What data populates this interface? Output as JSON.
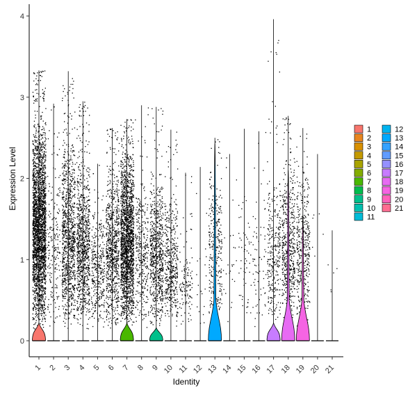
{
  "chart_data": {
    "type": "violin",
    "xlabel": "Identity",
    "ylabel": "Expression Level",
    "ylim": [
      -0.2,
      4.05
    ],
    "yticks": [
      0,
      1,
      2,
      3,
      4
    ],
    "grid": false,
    "legend_position": "right",
    "legend_title": "",
    "categories": [
      "1",
      "2",
      "3",
      "4",
      "5",
      "6",
      "7",
      "8",
      "9",
      "10",
      "11",
      "12",
      "13",
      "14",
      "15",
      "16",
      "17",
      "18",
      "19",
      "20",
      "21"
    ],
    "colors": [
      "#F8766D",
      "#E8851E",
      "#D89000",
      "#C49A00",
      "#A9A400",
      "#84AD00",
      "#4AB800",
      "#00BC4D",
      "#00C08B",
      "#00C0AF",
      "#00BCD8",
      "#00B4F0",
      "#00A9FF",
      "#35A2FF",
      "#619CFF",
      "#9590FF",
      "#C77CFF",
      "#E76BF3",
      "#F564E3",
      "#FF62BC",
      "#FF6C91"
    ],
    "series": [
      {
        "name": "1",
        "max": 3.33,
        "violin_height": 0.22,
        "violin_halfwidth": 0.45,
        "points": 2600,
        "dense_top": 2.7
      },
      {
        "name": "2",
        "max": 2.92,
        "violin_height": 0.0,
        "violin_halfwidth": 0.0,
        "points": 200,
        "dense_top": 2.2
      },
      {
        "name": "3",
        "max": 3.32,
        "violin_height": 0.0,
        "violin_halfwidth": 0.0,
        "points": 1000,
        "dense_top": 2.5
      },
      {
        "name": "4",
        "max": 2.95,
        "violin_height": 0.0,
        "violin_halfwidth": 0.0,
        "points": 900,
        "dense_top": 2.3
      },
      {
        "name": "5",
        "max": 2.18,
        "violin_height": 0.0,
        "violin_halfwidth": 0.0,
        "points": 350,
        "dense_top": 1.6
      },
      {
        "name": "6",
        "max": 2.62,
        "violin_height": 0.0,
        "violin_halfwidth": 0.0,
        "points": 800,
        "dense_top": 2.2
      },
      {
        "name": "7",
        "max": 2.73,
        "violin_height": 0.23,
        "violin_halfwidth": 0.45,
        "points": 1900,
        "dense_top": 2.4
      },
      {
        "name": "8",
        "max": 2.9,
        "violin_height": 0.0,
        "violin_halfwidth": 0.0,
        "points": 350,
        "dense_top": 2.0
      },
      {
        "name": "9",
        "max": 2.88,
        "violin_height": 0.16,
        "violin_halfwidth": 0.45,
        "points": 700,
        "dense_top": 2.0
      },
      {
        "name": "10",
        "max": 2.6,
        "violin_height": 0.0,
        "violin_halfwidth": 0.0,
        "points": 450,
        "dense_top": 1.8
      },
      {
        "name": "11",
        "max": 2.07,
        "violin_height": 0.0,
        "violin_halfwidth": 0.0,
        "points": 120,
        "dense_top": 1.2
      },
      {
        "name": "12",
        "max": 2.14,
        "violin_height": 0.0,
        "violin_halfwidth": 0.0,
        "points": 20,
        "dense_top": 1.6
      },
      {
        "name": "13",
        "max": 2.5,
        "violin_height": 2.43,
        "violin_halfwidth": 0.45,
        "points": 300,
        "dense_top": 2.2
      },
      {
        "name": "14",
        "max": 2.3,
        "violin_height": 0.0,
        "violin_halfwidth": 0.0,
        "points": 25,
        "dense_top": 1.8
      },
      {
        "name": "15",
        "max": 2.61,
        "violin_height": 0.0,
        "violin_halfwidth": 0.0,
        "points": 55,
        "dense_top": 2.0
      },
      {
        "name": "16",
        "max": 2.58,
        "violin_height": 0.0,
        "violin_halfwidth": 0.0,
        "points": 70,
        "dense_top": 2.0
      },
      {
        "name": "17",
        "max": 3.96,
        "violin_height": 0.24,
        "violin_halfwidth": 0.45,
        "points": 300,
        "dense_top": 2.0
      },
      {
        "name": "18",
        "max": 2.77,
        "violin_height": 2.1,
        "violin_halfwidth": 0.45,
        "points": 550,
        "dense_top": 2.2
      },
      {
        "name": "19",
        "max": 2.62,
        "violin_height": 1.55,
        "violin_halfwidth": 0.45,
        "points": 380,
        "dense_top": 2.1
      },
      {
        "name": "20",
        "max": 2.3,
        "violin_height": 0.0,
        "violin_halfwidth": 0.0,
        "points": 6,
        "dense_top": 2.3
      },
      {
        "name": "21",
        "max": 1.36,
        "violin_height": 0.0,
        "violin_halfwidth": 0.0,
        "points": 5,
        "dense_top": 1.36
      }
    ]
  }
}
